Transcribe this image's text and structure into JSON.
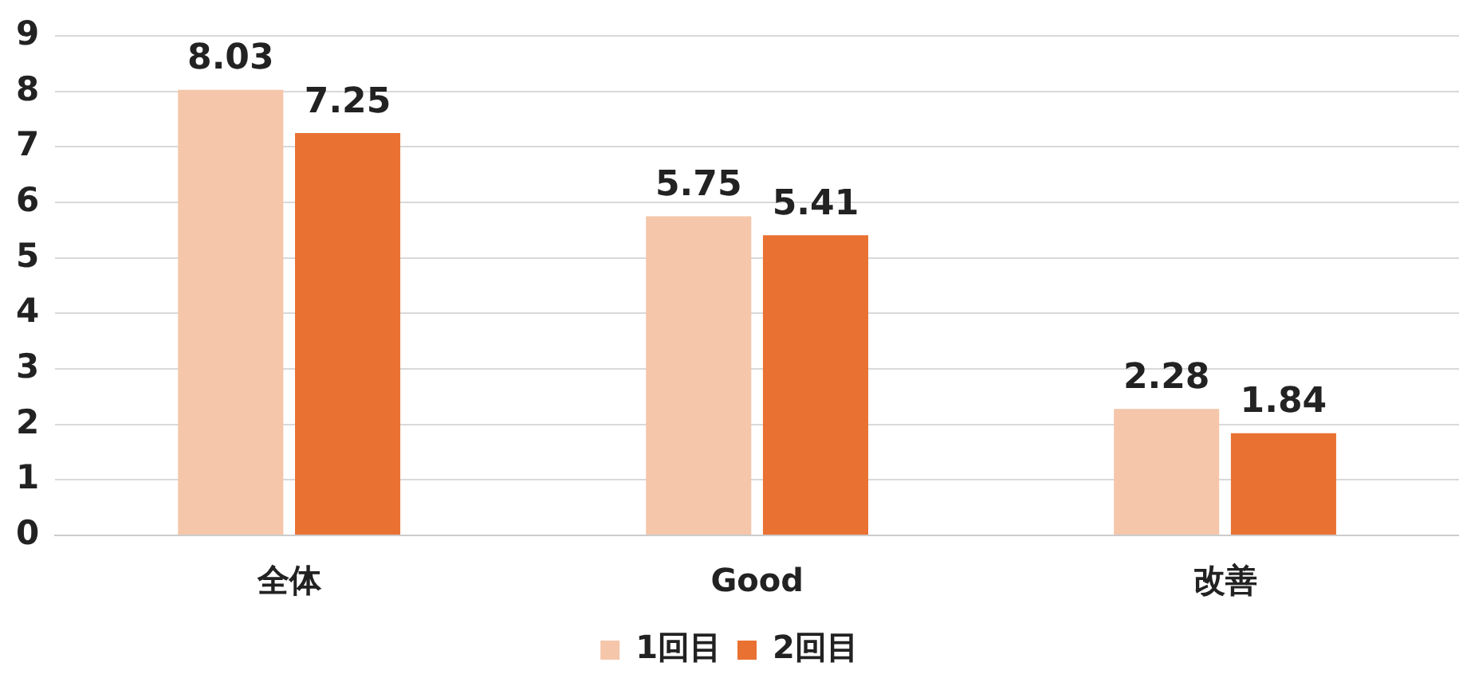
{
  "chart_data": {
    "type": "bar",
    "categories": [
      "全体",
      "Good",
      "改善"
    ],
    "series": [
      {
        "name": "1回目",
        "color": "#f5c6aa",
        "values": [
          8.03,
          5.75,
          2.28
        ]
      },
      {
        "name": "2回目",
        "color": "#e97132",
        "values": [
          7.25,
          5.41,
          1.84
        ]
      }
    ],
    "ylim": [
      0,
      9
    ],
    "yticks": [
      0,
      1,
      2,
      3,
      4,
      5,
      6,
      7,
      8,
      9
    ],
    "grid": "y",
    "legend": "bottom",
    "data_labels": true
  }
}
